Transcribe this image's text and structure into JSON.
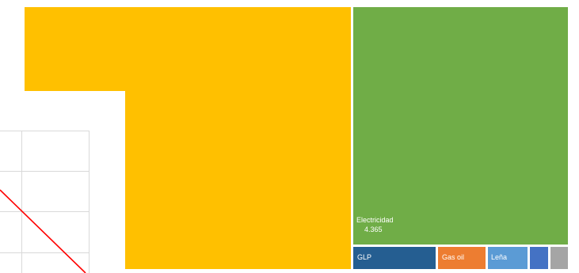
{
  "chart_data": {
    "type": "treemap",
    "title": "",
    "series": [
      {
        "name": "",
        "color": "#FFC000",
        "value": null,
        "label": ""
      },
      {
        "name": "Electricidad",
        "color": "#70AD47",
        "value": 4365,
        "label": "4.365"
      },
      {
        "name": "GLP",
        "color": "#255E91",
        "value": null,
        "label": ""
      },
      {
        "name": "Gas oil",
        "color": "#ED7D31",
        "value": null,
        "label": ""
      },
      {
        "name": "Leña",
        "color": "#5B9BD5",
        "value": null,
        "label": ""
      },
      {
        "name": "",
        "color": "#4472C4",
        "value": null,
        "label": ""
      },
      {
        "name": "",
        "color": "#A5A5A5",
        "value": null,
        "label": ""
      }
    ]
  },
  "overlay_chart": {
    "type": "line",
    "line_color": "#FF0000",
    "grid": true
  }
}
